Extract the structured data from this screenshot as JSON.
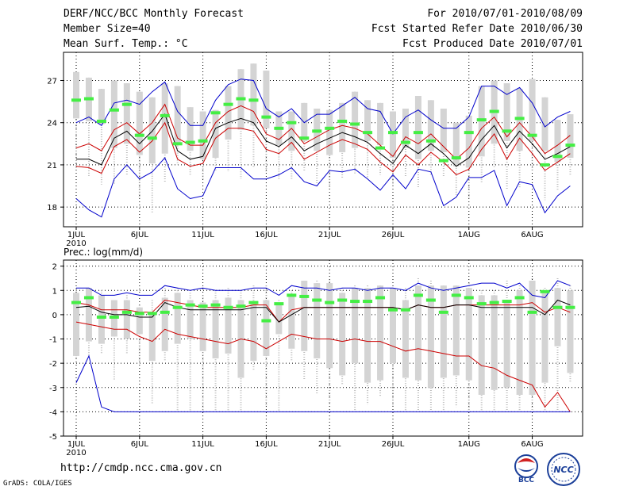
{
  "header": {
    "title": "DERF/NCC/BCC Monthly Forecast",
    "member_size": "Member Size=40",
    "variable": "Mean Surf. Temp.: °C",
    "period": "For 2010/07/01-2010/08/09",
    "refer_date": "Fcst Started Refer Date 2010/06/30",
    "produced_date": "Fcst Produced Date 2010/07/01"
  },
  "footer": {
    "url": "http://cmdp.ncc.cma.gov.cn",
    "credit": "GrADS: COLA/IGES",
    "logo_bcc": "BCC",
    "logo_ncc": "NCC"
  },
  "colors": {
    "box": "#d4d4d4",
    "mean": "#000000",
    "spread": "#cc0000",
    "extremes": "#0000cc",
    "observed": "#44ee44"
  },
  "chart_data": [
    {
      "type": "line",
      "title": "Mean Surf. Temp.: °C",
      "x_label_year": "2010",
      "x_ticks": [
        {
          "day": 1,
          "label": "1JUL"
        },
        {
          "day": 6,
          "label": "6JUL"
        },
        {
          "day": 11,
          "label": "11JUL"
        },
        {
          "day": 16,
          "label": "16JUL"
        },
        {
          "day": 21,
          "label": "21JUL"
        },
        {
          "day": 26,
          "label": "26JUL"
        },
        {
          "day": 32,
          "label": "1AUG"
        },
        {
          "day": 37,
          "label": "6AUG"
        }
      ],
      "ylim": [
        16.6,
        29.0
      ],
      "yticks": [
        18,
        21,
        24,
        27
      ],
      "day_count": 40,
      "box_range": {
        "low": [
          24.3,
          24.1,
          23.9,
          22.2,
          22.5,
          21.7,
          21.1,
          21.8,
          22.6,
          22.0,
          21.4,
          21.5,
          22.8,
          23.5,
          23.8,
          23.6,
          22.4,
          22.0,
          22.7,
          22.0,
          21.7,
          21.9,
          22.2,
          22.7,
          22.4,
          21.5,
          22.2,
          21.4,
          22.0,
          21.9,
          20.9,
          20.8,
          21.6,
          22.5,
          22.7,
          22.0,
          22.7,
          22.0,
          21.2,
          21.5
        ],
        "high": [
          27.6,
          27.2,
          26.4,
          27.0,
          26.8,
          26.2,
          25.8,
          26.8,
          26.6,
          25.1,
          24.8,
          24.9,
          26.6,
          27.8,
          28.2,
          27.7,
          24.8,
          24.8,
          25.4,
          25.0,
          24.9,
          25.4,
          26.2,
          25.6,
          25.4,
          24.8,
          25.0,
          25.9,
          25.6,
          25.0,
          24.0,
          24.5,
          26.6,
          27.0,
          26.8,
          26.4,
          27.1,
          25.8,
          24.2,
          24.6
        ]
      },
      "whiskers": {
        "low": [
          20.8,
          20.1,
          19.6,
          19.6,
          20.3,
          18.7,
          17.6,
          19.8,
          21.0,
          20.3,
          20.0,
          20.5,
          20.5,
          20.0,
          20.8,
          20.5,
          20.0,
          20.0,
          20.6,
          19.6,
          19.3,
          20.0,
          20.4,
          20.0,
          20.3,
          19.5,
          20.2,
          19.4,
          20.3,
          20.1,
          18.8,
          18.6,
          19.7,
          20.8,
          19.3,
          19.3,
          20.5,
          18.5,
          19.2,
          20.2
        ],
        "high": [
          27.6,
          27.2,
          26.4,
          27.0,
          26.8,
          26.2,
          25.8,
          26.8,
          26.6,
          25.1,
          24.8,
          24.9,
          26.6,
          27.8,
          28.2,
          27.7,
          24.8,
          24.8,
          25.4,
          25.0,
          24.9,
          25.4,
          26.2,
          25.6,
          25.4,
          24.8,
          25.0,
          25.9,
          25.6,
          25.0,
          24.0,
          24.5,
          26.6,
          27.0,
          26.8,
          26.4,
          27.1,
          25.8,
          24.2,
          24.6
        ]
      },
      "observed": [
        25.6,
        25.7,
        24.1,
        24.9,
        25.3,
        23.1,
        22.9,
        24.5,
        22.5,
        22.6,
        22.7,
        24.7,
        25.3,
        25.7,
        25.6,
        24.4,
        23.6,
        24.0,
        22.9,
        23.4,
        23.6,
        24.1,
        23.9,
        23.3,
        22.2,
        23.3,
        22.6,
        23.3,
        22.7,
        21.3,
        21.5,
        23.3,
        24.2,
        24.8,
        23.4,
        24.3,
        23.1,
        21.0,
        21.6,
        22.4
      ],
      "series": [
        {
          "name": "ensemble max",
          "color": "#0000cc",
          "values": [
            24.0,
            24.4,
            23.8,
            25.4,
            25.6,
            25.3,
            26.2,
            26.9,
            24.8,
            23.8,
            23.8,
            25.6,
            26.7,
            27.1,
            27.0,
            25.0,
            24.4,
            25.0,
            24.0,
            24.6,
            24.6,
            25.2,
            25.8,
            25.0,
            24.8,
            23.2,
            24.4,
            24.9,
            24.2,
            23.6,
            23.6,
            24.4,
            26.6,
            26.6,
            26.0,
            26.5,
            25.4,
            23.7,
            24.4,
            24.8
          ]
        },
        {
          "name": "mean + 1 std",
          "color": "#cc0000",
          "values": [
            22.2,
            22.5,
            22.0,
            23.5,
            24.0,
            23.2,
            24.0,
            25.3,
            22.9,
            22.4,
            22.4,
            24.0,
            24.8,
            25.2,
            24.8,
            23.2,
            22.8,
            23.6,
            22.5,
            23.0,
            23.5,
            23.8,
            23.6,
            23.2,
            22.4,
            21.6,
            23.0,
            22.5,
            23.2,
            22.3,
            21.4,
            22.2,
            23.6,
            24.4,
            23.0,
            24.0,
            23.0,
            21.8,
            22.4,
            23.1
          ]
        },
        {
          "name": "ensemble mean",
          "color": "#000000",
          "values": [
            21.4,
            21.4,
            21.0,
            22.9,
            23.4,
            22.5,
            23.4,
            24.6,
            22.0,
            21.4,
            21.6,
            23.6,
            24.0,
            24.3,
            24.0,
            22.7,
            22.3,
            23.0,
            22.0,
            22.5,
            22.9,
            23.3,
            23.0,
            22.6,
            21.8,
            21.1,
            22.4,
            21.8,
            22.5,
            21.8,
            20.9,
            21.5,
            22.8,
            23.8,
            22.2,
            23.4,
            22.5,
            21.4,
            21.8,
            22.3
          ]
        },
        {
          "name": "mean - 1 std",
          "color": "#cc0000",
          "values": [
            20.9,
            20.8,
            20.4,
            22.3,
            22.8,
            21.9,
            22.7,
            24.0,
            21.4,
            20.9,
            21.1,
            22.9,
            23.6,
            23.6,
            23.4,
            22.1,
            21.8,
            22.6,
            21.4,
            21.9,
            22.4,
            22.8,
            22.5,
            22.1,
            21.2,
            20.5,
            21.7,
            21.0,
            21.9,
            21.2,
            20.3,
            20.7,
            22.1,
            23.2,
            21.4,
            22.9,
            21.8,
            20.6,
            21.2,
            21.8
          ]
        },
        {
          "name": "ensemble min",
          "color": "#0000cc",
          "values": [
            18.6,
            17.8,
            17.3,
            20.0,
            21.0,
            20.0,
            20.5,
            21.5,
            19.3,
            18.6,
            18.8,
            20.8,
            20.8,
            20.8,
            20.0,
            20.0,
            20.3,
            20.8,
            19.8,
            19.5,
            20.6,
            20.5,
            20.7,
            20.0,
            19.2,
            20.3,
            19.3,
            20.7,
            20.5,
            18.1,
            18.7,
            20.1,
            20.1,
            20.6,
            18.1,
            19.8,
            19.6,
            17.6,
            18.8,
            19.5
          ]
        }
      ]
    },
    {
      "type": "line",
      "title": "Prec.: log(mm/d)",
      "x_label_year": "2010",
      "x_ticks": [
        {
          "day": 1,
          "label": "1JUL"
        },
        {
          "day": 6,
          "label": "6JUL"
        },
        {
          "day": 11,
          "label": "11JUL"
        },
        {
          "day": 16,
          "label": "16JUL"
        },
        {
          "day": 21,
          "label": "21JUL"
        },
        {
          "day": 26,
          "label": "26JUL"
        },
        {
          "day": 32,
          "label": "1AUG"
        },
        {
          "day": 37,
          "label": "6AUG"
        }
      ],
      "ylim": [
        -5,
        2.25
      ],
      "yticks": [
        -5,
        -4,
        -3,
        -2,
        -1,
        0,
        1,
        2
      ],
      "day_count": 40,
      "box_range": {
        "low": [
          -1.7,
          -1.1,
          -1.2,
          -0.9,
          -1.0,
          -0.8,
          -1.9,
          -1.5,
          -1.2,
          -1.0,
          -1.5,
          -1.8,
          -1.6,
          -2.6,
          -1.9,
          -1.7,
          -0.8,
          -1.4,
          -1.5,
          -1.8,
          -2.2,
          -2.5,
          -2.0,
          -2.8,
          -2.7,
          -2.0,
          -2.6,
          -2.7,
          -3.0,
          -2.6,
          -2.5,
          -2.7,
          -3.3,
          -3.1,
          -3.0,
          -3.3,
          -3.3,
          -2.8,
          -1.3,
          -2.4
        ],
        "high": [
          0.9,
          1.1,
          0.8,
          0.6,
          0.6,
          0.3,
          0.1,
          0.7,
          0.9,
          0.6,
          0.5,
          0.6,
          0.7,
          0.6,
          0.5,
          0.6,
          0.5,
          0.8,
          1.4,
          1.3,
          1.3,
          0.9,
          1.1,
          1.1,
          1.2,
          1.1,
          0.6,
          1.2,
          1.2,
          1.2,
          1.2,
          1.1,
          0.8,
          0.8,
          0.6,
          1.0,
          1.4,
          1.0,
          1.1,
          1.0
        ]
      },
      "whiskers": {
        "low": [
          -1.8,
          -1.8,
          -1.6,
          -2.7,
          -1.6,
          -1.9,
          -3.7,
          -1.9,
          -4.0,
          -4.0,
          -4.0,
          -4.0,
          -4.0,
          -4.0,
          -2.3,
          -3.8,
          -4.0,
          -1.9,
          -2.7,
          -3.3,
          -3.7,
          -2.9,
          -4.0,
          -3.7,
          -3.4,
          -3.8,
          -4.0,
          -4.0,
          -4.0,
          -4.0,
          -3.8,
          -4.0,
          -4.0,
          -4.0,
          -4.0,
          -4.0,
          -4.0,
          -4.0,
          -4.0,
          -2.8
        ],
        "high": [
          1.1,
          1.1,
          1.0,
          0.6,
          0.8,
          0.4,
          0.6,
          1.1,
          1.1,
          0.9,
          0.8,
          1.0,
          1.1,
          1.0,
          1.2,
          1.2,
          0.6,
          1.0,
          1.4,
          1.4,
          1.4,
          1.1,
          1.2,
          1.2,
          1.2,
          1.1,
          1.1,
          1.5,
          1.4,
          1.2,
          1.2,
          1.3,
          1.0,
          1.0,
          1.4,
          1.2,
          1.5,
          1.1,
          1.5,
          1.2
        ]
      },
      "observed": [
        0.5,
        0.7,
        -0.1,
        -0.1,
        0.1,
        0.05,
        0.05,
        0.1,
        0.3,
        0.4,
        0.35,
        0.4,
        0.3,
        0.35,
        0.5,
        -0.25,
        0.45,
        0.8,
        0.75,
        0.6,
        0.5,
        0.6,
        0.55,
        0.55,
        0.7,
        0.2,
        0.2,
        0.8,
        0.6,
        0.1,
        0.8,
        0.7,
        0.45,
        0.5,
        0.55,
        0.7,
        0.1,
        0.95,
        0.3,
        0.3
      ],
      "series": [
        {
          "name": "ensemble max",
          "color": "#0000cc",
          "values": [
            1.1,
            1.1,
            0.8,
            0.8,
            0.9,
            0.8,
            0.8,
            1.2,
            1.1,
            1.0,
            1.1,
            1.0,
            1.0,
            1.0,
            1.1,
            1.1,
            0.8,
            1.2,
            1.1,
            1.1,
            1.0,
            1.1,
            1.1,
            1.0,
            1.1,
            1.1,
            1.0,
            1.3,
            1.1,
            1.0,
            1.1,
            1.2,
            1.3,
            1.3,
            1.1,
            1.3,
            0.8,
            0.7,
            1.4,
            1.2
          ]
        },
        {
          "name": "mean + 1 std",
          "color": "#cc0000",
          "values": [
            0.5,
            0.4,
            0.2,
            0.2,
            0.2,
            0.1,
            0.1,
            0.6,
            0.5,
            0.4,
            0.3,
            0.3,
            0.3,
            0.3,
            0.4,
            0.4,
            -0.3,
            0.2,
            0.3,
            0.3,
            0.3,
            0.3,
            0.3,
            0.3,
            0.3,
            0.3,
            0.2,
            0.4,
            0.3,
            0.3,
            0.4,
            0.4,
            0.4,
            0.4,
            0.4,
            0.4,
            0.5,
            0.1,
            0.3,
            0.1
          ]
        },
        {
          "name": "ensemble mean",
          "color": "#000000",
          "values": [
            0.3,
            0.35,
            0.1,
            0.0,
            0.0,
            -0.1,
            -0.1,
            0.5,
            0.3,
            0.2,
            0.2,
            0.2,
            0.2,
            0.2,
            0.3,
            0.3,
            -0.3,
            0.0,
            0.3,
            0.3,
            0.3,
            0.3,
            0.3,
            0.3,
            0.3,
            0.3,
            0.2,
            0.4,
            0.3,
            0.3,
            0.4,
            0.4,
            0.3,
            0.3,
            0.3,
            0.3,
            0.3,
            0.0,
            0.6,
            0.4
          ]
        },
        {
          "name": "mean - 1 std",
          "color": "#cc0000",
          "values": [
            -0.3,
            -0.4,
            -0.5,
            -0.6,
            -0.6,
            -0.9,
            -1.1,
            -0.6,
            -0.8,
            -0.9,
            -1.0,
            -1.1,
            -1.2,
            -1.0,
            -1.1,
            -1.4,
            -1.1,
            -0.8,
            -0.9,
            -1.0,
            -1.0,
            -1.1,
            -1.0,
            -1.1,
            -1.1,
            -1.3,
            -1.5,
            -1.4,
            -1.5,
            -1.6,
            -1.7,
            -1.7,
            -2.1,
            -2.2,
            -2.5,
            -2.7,
            -2.9,
            -3.8,
            -3.2,
            -4.0
          ]
        },
        {
          "name": "ensemble min",
          "color": "#0000cc",
          "values": [
            -2.8,
            -1.7,
            -3.8,
            -4.0,
            -4.0,
            -4.0,
            -4.0,
            -4.0,
            -4.0,
            -4.0,
            -4.0,
            -4.0,
            -4.0,
            -4.0,
            -4.0,
            -4.0,
            -4.0,
            -4.0,
            -4.0,
            -4.0,
            -4.0,
            -4.0,
            -4.0,
            -4.0,
            -4.0,
            -4.0,
            -4.0,
            -4.0,
            -4.0,
            -4.0,
            -4.0,
            -4.0,
            -4.0,
            -4.0,
            -4.0,
            -4.0,
            -4.0,
            -4.0,
            -4.0,
            -4.0
          ]
        }
      ]
    }
  ]
}
